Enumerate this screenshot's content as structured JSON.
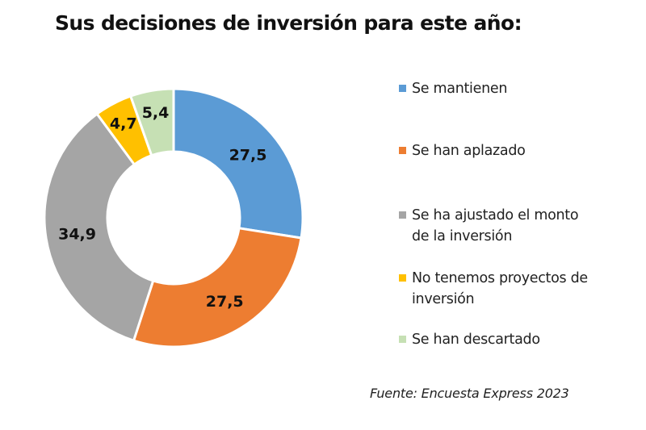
{
  "chart_data": {
    "type": "pie",
    "variant": "donut",
    "title": "Sus decisiones de inversión para este año:",
    "slices": [
      {
        "label": "Se mantienen",
        "value": 27.5,
        "display": "27,5",
        "color": "#5b9bd5"
      },
      {
        "label": "Se han aplazado",
        "value": 27.5,
        "display": "27,5",
        "color": "#ed7d31"
      },
      {
        "label": "Se ha ajustado el monto de la inversión",
        "value": 34.9,
        "display": "34,9",
        "color": "#a5a5a5"
      },
      {
        "label": "No tenemos proyectos de inversión",
        "value": 4.7,
        "display": "4,7",
        "color": "#ffc000"
      },
      {
        "label": "Se han descartado",
        "value": 5.4,
        "display": "5,4",
        "color": "#c6e0b4"
      }
    ],
    "legend_position": "right",
    "source": "Fuente: Encuesta Express 2023"
  }
}
